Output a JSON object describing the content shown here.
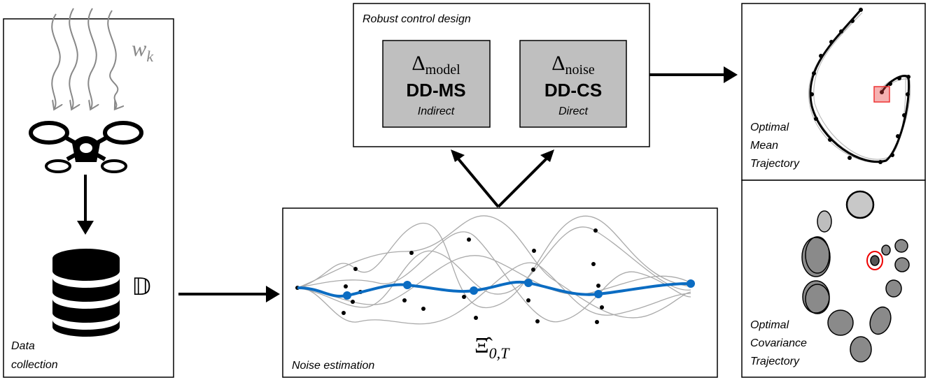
{
  "data_collection": {
    "noise_symbol": "w",
    "noise_subscript": "k",
    "dataset_symbol": "𝔻",
    "caption": [
      "Data",
      "collection"
    ]
  },
  "robust_control": {
    "title": "Robust control design",
    "methods": [
      {
        "symbol": "Δ",
        "subscript": "model",
        "name": "DD-MS",
        "kind": "Indirect"
      },
      {
        "symbol": "Δ",
        "subscript": "noise",
        "name": "DD-CS",
        "kind": "Direct"
      }
    ]
  },
  "noise_estimation": {
    "title": "Noise estimation",
    "symbol": "Ξ̂",
    "subscript": "0,T"
  },
  "mean_trajectory": {
    "caption": [
      "Optimal",
      "Mean",
      "Trajectory"
    ]
  },
  "covariance_trajectory": {
    "caption": [
      "Optimal",
      "Covariance",
      "Trajectory"
    ]
  }
}
